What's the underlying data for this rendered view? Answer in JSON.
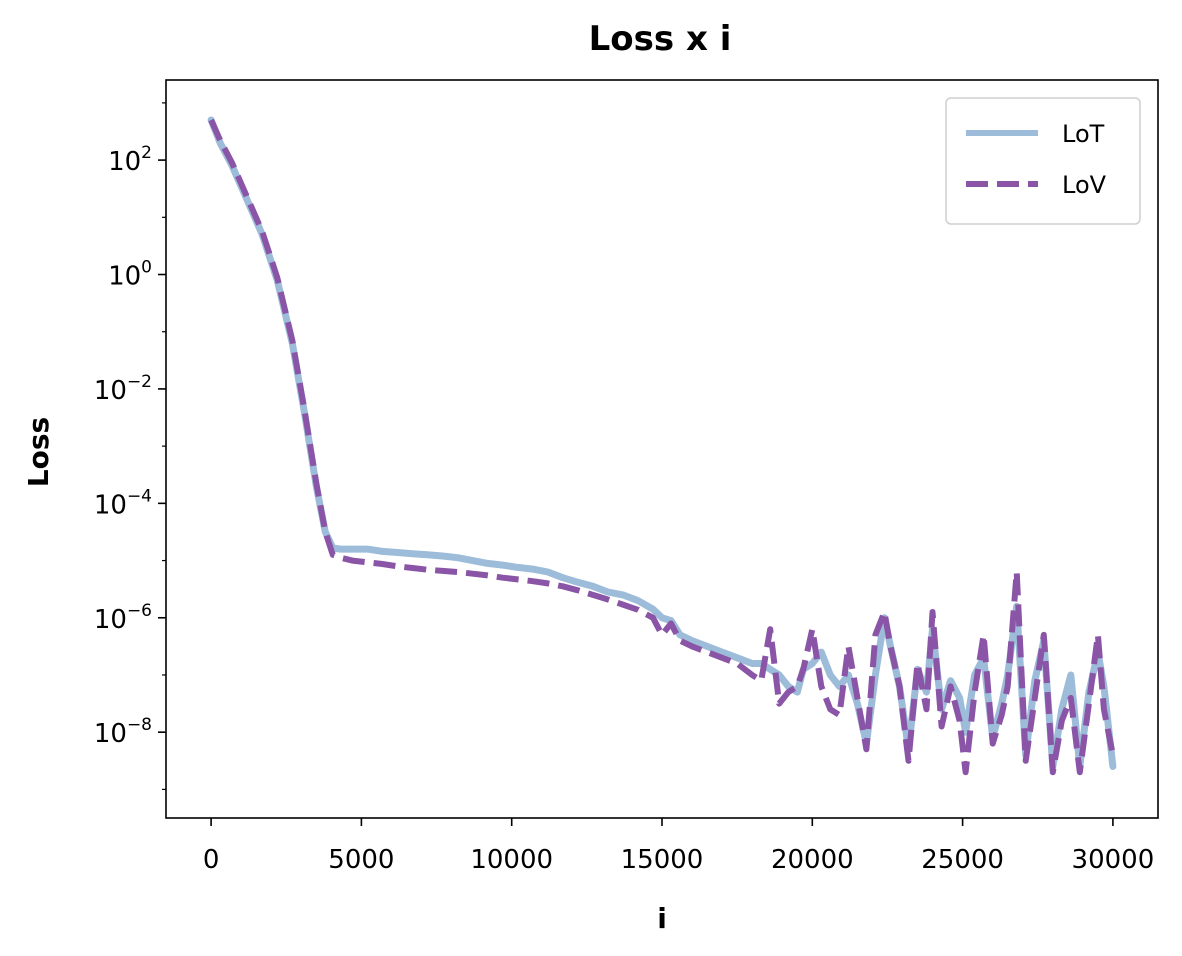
{
  "chart_data": {
    "type": "line",
    "title": "Loss x i",
    "xlabel": "i",
    "ylabel": "Loss",
    "xlim": [
      -1500,
      31500
    ],
    "ylim_log10": [
      -9.5,
      3.4
    ],
    "yscale": "log",
    "grid": false,
    "legend_placement": "top-right",
    "x_ticks": [
      0,
      5000,
      10000,
      15000,
      20000,
      25000,
      30000
    ],
    "x_tick_labels": [
      "0",
      "5000",
      "10000",
      "15000",
      "20000",
      "25000",
      "30000"
    ],
    "y_ticks": [
      {
        "log10": 2,
        "base": "10",
        "exp": "2"
      },
      {
        "log10": 0,
        "base": "10",
        "exp": "0"
      },
      {
        "log10": -2,
        "base": "10",
        "exp": "−2"
      },
      {
        "log10": -4,
        "base": "10",
        "exp": "−4"
      },
      {
        "log10": -6,
        "base": "10",
        "exp": "−6"
      },
      {
        "log10": -8,
        "base": "10",
        "exp": "−8"
      }
    ],
    "series": [
      {
        "name": "LoT",
        "color": "#9dbcd9",
        "style": "solid",
        "x": [
          0,
          300,
          700,
          1200,
          1700,
          2200,
          2700,
          3100,
          3500,
          3800,
          4050,
          4300,
          4700,
          5200,
          5700,
          6200,
          6700,
          7200,
          7700,
          8200,
          8700,
          9200,
          9700,
          10200,
          10700,
          11200,
          11700,
          12200,
          12700,
          13200,
          13700,
          14200,
          14700,
          15000,
          15300,
          15600,
          16000,
          16500,
          17000,
          17500,
          18000,
          18300,
          18600,
          18900,
          19200,
          19500,
          19700,
          20000,
          20300,
          20600,
          20900,
          21200,
          21500,
          21800,
          22100,
          22400,
          22600,
          22900,
          23200,
          23500,
          23800,
          24000,
          24300,
          24600,
          24900,
          25100,
          25400,
          25700,
          26000,
          26300,
          26500,
          26800,
          27100,
          27400,
          27700,
          28000,
          28300,
          28600,
          28900,
          29200,
          29500,
          29700,
          30000
        ],
        "log10_y": [
          2.7,
          2.3,
          1.9,
          1.3,
          0.7,
          -0.1,
          -1.2,
          -2.4,
          -3.7,
          -4.5,
          -4.78,
          -4.8,
          -4.8,
          -4.8,
          -4.84,
          -4.86,
          -4.88,
          -4.9,
          -4.92,
          -4.95,
          -5.0,
          -5.05,
          -5.08,
          -5.12,
          -5.15,
          -5.2,
          -5.3,
          -5.38,
          -5.45,
          -5.55,
          -5.6,
          -5.7,
          -5.85,
          -6.0,
          -6.05,
          -6.3,
          -6.4,
          -6.5,
          -6.6,
          -6.7,
          -6.8,
          -6.8,
          -6.9,
          -7.0,
          -7.2,
          -7.3,
          -6.9,
          -6.8,
          -6.6,
          -7.0,
          -7.2,
          -7.0,
          -7.5,
          -8.2,
          -7.0,
          -6.0,
          -6.5,
          -7.2,
          -8.3,
          -6.9,
          -7.3,
          -6.2,
          -7.6,
          -7.1,
          -7.4,
          -8.0,
          -7.0,
          -6.7,
          -8.1,
          -7.5,
          -7.0,
          -5.8,
          -8.4,
          -7.1,
          -6.4,
          -8.6,
          -7.6,
          -7.0,
          -8.6,
          -7.3,
          -6.6,
          -7.2,
          -8.6
        ]
      },
      {
        "name": "LoV",
        "color": "#8a55a6",
        "style": "dashed",
        "x": [
          0,
          300,
          700,
          1200,
          1700,
          2200,
          2700,
          3100,
          3500,
          3800,
          4050,
          4300,
          4700,
          5200,
          5700,
          6200,
          6700,
          7200,
          7700,
          8200,
          8700,
          9200,
          9700,
          10200,
          10700,
          11200,
          11700,
          12200,
          12700,
          13200,
          13700,
          14200,
          14700,
          15000,
          15300,
          15600,
          16000,
          16500,
          17000,
          17500,
          18000,
          18300,
          18600,
          18900,
          19200,
          19500,
          19700,
          20000,
          20300,
          20600,
          20900,
          21200,
          21500,
          21800,
          22100,
          22400,
          22600,
          22900,
          23200,
          23500,
          23800,
          24000,
          24300,
          24600,
          24900,
          25100,
          25400,
          25700,
          26000,
          26300,
          26500,
          26800,
          27100,
          27400,
          27700,
          28000,
          28300,
          28600,
          28900,
          29200,
          29500,
          29700,
          30000
        ],
        "log10_y": [
          2.7,
          2.35,
          1.95,
          1.35,
          0.75,
          -0.05,
          -1.15,
          -2.35,
          -3.65,
          -4.5,
          -4.9,
          -4.95,
          -5.0,
          -5.03,
          -5.06,
          -5.1,
          -5.13,
          -5.16,
          -5.18,
          -5.2,
          -5.23,
          -5.26,
          -5.3,
          -5.33,
          -5.36,
          -5.4,
          -5.45,
          -5.52,
          -5.6,
          -5.68,
          -5.77,
          -5.86,
          -6.0,
          -6.3,
          -6.1,
          -6.4,
          -6.5,
          -6.6,
          -6.7,
          -6.8,
          -7.0,
          -7.1,
          -6.2,
          -7.5,
          -7.3,
          -7.2,
          -6.9,
          -6.2,
          -7.2,
          -7.6,
          -7.7,
          -6.5,
          -7.4,
          -8.3,
          -6.3,
          -5.9,
          -6.5,
          -7.2,
          -8.5,
          -6.8,
          -7.6,
          -5.9,
          -7.9,
          -7.2,
          -7.8,
          -8.7,
          -7.3,
          -6.3,
          -8.2,
          -7.7,
          -7.2,
          -5.2,
          -8.5,
          -7.4,
          -6.3,
          -8.7,
          -7.8,
          -7.4,
          -8.7,
          -7.5,
          -6.3,
          -7.6,
          -8.4
        ]
      }
    ]
  }
}
